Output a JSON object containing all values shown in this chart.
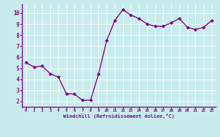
{
  "x": [
    0,
    1,
    2,
    3,
    4,
    5,
    6,
    7,
    8,
    9,
    10,
    11,
    12,
    13,
    14,
    15,
    16,
    17,
    18,
    19,
    20,
    21,
    22,
    23
  ],
  "y": [
    5.5,
    5.1,
    5.2,
    4.5,
    4.2,
    2.7,
    2.65,
    2.1,
    2.1,
    4.5,
    7.5,
    9.3,
    10.3,
    9.8,
    9.5,
    9.0,
    8.8,
    8.8,
    9.1,
    9.5,
    8.7,
    8.5,
    8.7,
    9.3
  ],
  "line_color": "#800080",
  "marker_color": "#800080",
  "bg_color": "#c8ecec",
  "grid_color": "#b0d8d8",
  "xlabel": "Windchill (Refroidissement éolien,°C)",
  "xlabel_color": "#800080",
  "tick_color": "#800080",
  "axis_bar_color": "#800080",
  "ylim": [
    1.5,
    10.8
  ],
  "xlim": [
    -0.5,
    23.5
  ],
  "yticks": [
    2,
    3,
    4,
    5,
    6,
    7,
    8,
    9,
    10
  ],
  "xticks": [
    0,
    1,
    2,
    3,
    4,
    5,
    6,
    7,
    8,
    9,
    10,
    11,
    12,
    13,
    14,
    15,
    16,
    17,
    18,
    19,
    20,
    21,
    22,
    23
  ],
  "linewidth": 1.0,
  "markersize": 2.5
}
